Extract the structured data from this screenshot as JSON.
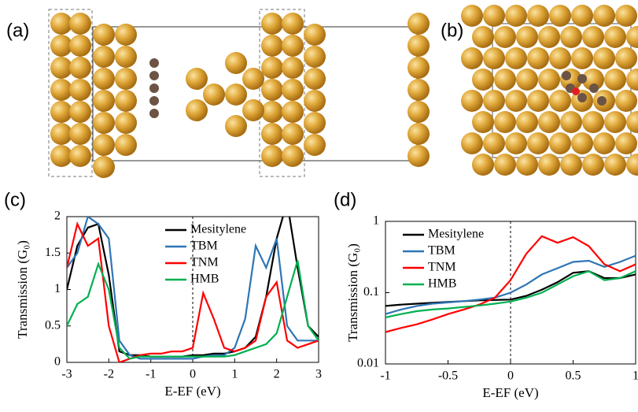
{
  "images": [
    {
      "label": "(a)"
    },
    {
      "label": "(b)"
    }
  ],
  "chart_data": [
    {
      "type": "line",
      "label": "(c)",
      "x_label": "E-EF (eV)",
      "y_label": "Transmission (G₀)",
      "x": [
        -3,
        -2.75,
        -2.5,
        -2.25,
        -2,
        -1.75,
        -1.5,
        -1.25,
        -1,
        -0.75,
        -0.5,
        -0.25,
        0,
        0.25,
        0.5,
        0.75,
        1,
        1.25,
        1.5,
        1.75,
        2,
        2.25,
        2.5,
        2.75,
        3
      ],
      "series": [
        {
          "name": "Mesitylene",
          "color": "#000000",
          "values": [
            1.0,
            1.6,
            1.85,
            1.9,
            1.2,
            0.15,
            0.1,
            0.1,
            0.08,
            0.08,
            0.08,
            0.08,
            0.1,
            0.1,
            0.12,
            0.12,
            0.15,
            0.2,
            0.35,
            0.9,
            1.7,
            2.2,
            1.3,
            0.5,
            0.35
          ]
        },
        {
          "name": "TBM",
          "color": "#2e75b6",
          "values": [
            1.3,
            1.5,
            2.0,
            1.9,
            1.7,
            0.3,
            0.1,
            0.05,
            0.05,
            0.05,
            0.05,
            0.05,
            0.05,
            0.08,
            0.1,
            0.1,
            0.2,
            0.6,
            1.6,
            1.3,
            1.7,
            0.5,
            0.3,
            0.3,
            0.3
          ]
        },
        {
          "name": "TNM",
          "color": "#ff0000",
          "values": [
            1.3,
            1.9,
            1.6,
            1.7,
            0.5,
            0.0,
            0.05,
            0.1,
            0.12,
            0.12,
            0.15,
            0.15,
            0.2,
            0.95,
            0.6,
            0.2,
            0.15,
            0.2,
            0.3,
            0.9,
            1.1,
            0.3,
            0.2,
            0.25,
            0.3
          ]
        },
        {
          "name": "HMB",
          "color": "#00b050",
          "values": [
            0.5,
            0.8,
            0.9,
            1.35,
            1.0,
            0.2,
            0.05,
            0.08,
            0.08,
            0.08,
            0.08,
            0.08,
            0.08,
            0.08,
            0.08,
            0.08,
            0.1,
            0.15,
            0.2,
            0.25,
            0.4,
            0.9,
            1.4,
            0.5,
            0.3
          ]
        }
      ],
      "xlim": [
        -3,
        3
      ],
      "xticks": [
        -3,
        -2,
        -1,
        0,
        1,
        2,
        3
      ],
      "ylim": [
        0,
        2
      ],
      "yticks": [
        0,
        0.5,
        1,
        1.5,
        2
      ],
      "vline_x": 0,
      "legend": "upper right",
      "log_y": false
    },
    {
      "type": "line",
      "label": "(d)",
      "x_label": "E-EF (eV)",
      "y_label": "Transmission (G₀)",
      "x": [
        -1,
        -0.875,
        -0.75,
        -0.625,
        -0.5,
        -0.375,
        -0.25,
        -0.125,
        0,
        0.125,
        0.25,
        0.375,
        0.5,
        0.625,
        0.75,
        0.875,
        1
      ],
      "series": [
        {
          "name": "Mesitylene",
          "color": "#000000",
          "values": [
            0.065,
            0.068,
            0.07,
            0.072,
            0.074,
            0.076,
            0.078,
            0.079,
            0.08,
            0.09,
            0.11,
            0.14,
            0.19,
            0.2,
            0.16,
            0.16,
            0.18
          ]
        },
        {
          "name": "TBM",
          "color": "#2e75b6",
          "values": [
            0.05,
            0.058,
            0.065,
            0.07,
            0.073,
            0.076,
            0.08,
            0.085,
            0.1,
            0.13,
            0.18,
            0.22,
            0.27,
            0.28,
            0.23,
            0.27,
            0.33
          ]
        },
        {
          "name": "TNM",
          "color": "#ff0000",
          "values": [
            0.028,
            0.032,
            0.036,
            0.042,
            0.05,
            0.058,
            0.068,
            0.085,
            0.15,
            0.35,
            0.62,
            0.5,
            0.6,
            0.45,
            0.25,
            0.2,
            0.25
          ]
        },
        {
          "name": "HMB",
          "color": "#00b050",
          "values": [
            0.045,
            0.05,
            0.055,
            0.058,
            0.06,
            0.063,
            0.066,
            0.07,
            0.075,
            0.085,
            0.1,
            0.13,
            0.17,
            0.2,
            0.15,
            0.16,
            0.2
          ]
        }
      ],
      "xlim": [
        -1,
        1
      ],
      "xticks": [
        -1,
        -0.5,
        0,
        0.5,
        1
      ],
      "ylim": [
        0.01,
        1
      ],
      "yticks": [
        0.01,
        0.1,
        1
      ],
      "vline_x": 0,
      "legend": "upper left",
      "log_y": true
    }
  ]
}
